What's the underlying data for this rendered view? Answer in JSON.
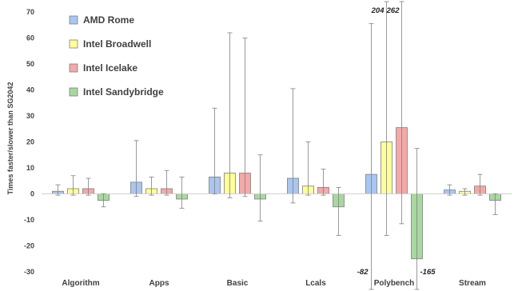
{
  "chart_data": {
    "type": "bar",
    "ylabel": "Times faster/slower than SG2042",
    "ylim": [
      -30,
      70
    ],
    "yticks": [
      -30,
      -20,
      -10,
      0,
      10,
      20,
      30,
      40,
      50,
      60,
      70
    ],
    "categories": [
      "Algorithm",
      "Apps",
      "Basic",
      "Lcals",
      "Polybench",
      "Stream"
    ],
    "legend_position": "top-left",
    "grid": false,
    "series": [
      {
        "name": "AMD Rome",
        "color": "#a9c6f0",
        "values": [
          1.0,
          4.5,
          6.5,
          6.0,
          7.5,
          1.5
        ],
        "err_low": [
          -0.5,
          -1.0,
          0,
          -3.5,
          -82,
          -0.5
        ],
        "err_high": [
          3.5,
          20.5,
          33,
          40.5,
          65.5,
          3.5
        ]
      },
      {
        "name": "Intel Broadwell",
        "color": "#ffff99",
        "values": [
          2.0,
          2.0,
          8.0,
          3.0,
          20.0,
          1.0
        ],
        "err_low": [
          -0.5,
          -0.5,
          -1.5,
          -0.5,
          -16,
          -0.5
        ],
        "err_high": [
          7.0,
          6.5,
          62,
          20,
          204,
          2.0
        ]
      },
      {
        "name": "Intel Icelake",
        "color": "#f4a8a8",
        "values": [
          2.0,
          2.0,
          8.0,
          2.5,
          25.5,
          3.0
        ],
        "err_low": [
          -0.5,
          -0.5,
          -1.0,
          -0.5,
          -11.5,
          -0.5
        ],
        "err_high": [
          6.0,
          9.0,
          60,
          9.5,
          262,
          7.5
        ]
      },
      {
        "name": "Intel Sandybridge",
        "color": "#a8d8a0",
        "values": [
          -2.5,
          -2.0,
          -2.0,
          -5.0,
          -25.0,
          -2.5
        ],
        "err_low": [
          -5.0,
          -5.5,
          -10.5,
          -16,
          -165,
          -8.0
        ],
        "err_high": [
          0,
          6.5,
          15,
          2.5,
          17.5,
          0
        ]
      }
    ],
    "annotations": [
      {
        "text": "204",
        "series": "Intel Broadwell",
        "category": "Polybench",
        "end": "high"
      },
      {
        "text": "262",
        "series": "Intel Icelake",
        "category": "Polybench",
        "end": "high"
      },
      {
        "text": "-82",
        "series": "AMD Rome",
        "category": "Polybench",
        "end": "low"
      },
      {
        "text": "-165",
        "series": "Intel Sandybridge",
        "category": "Polybench",
        "end": "low"
      }
    ]
  }
}
